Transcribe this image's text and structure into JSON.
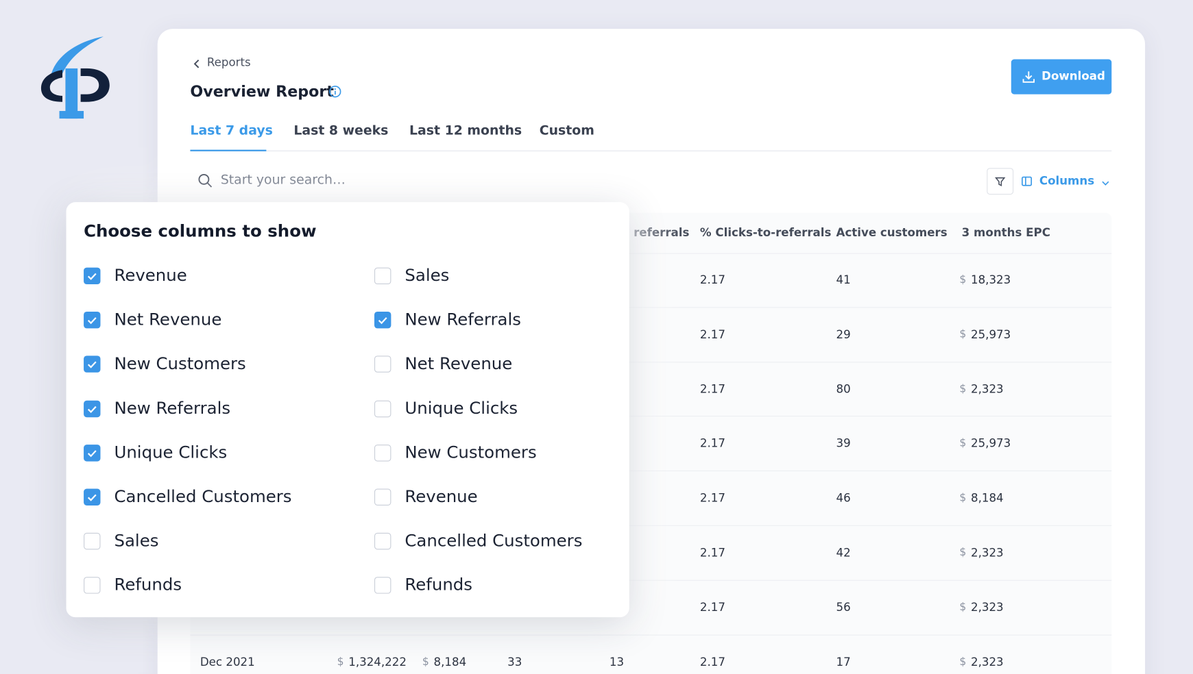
{
  "nav": {
    "back": "Reports"
  },
  "header": {
    "title": "Overview Report",
    "download": "Download"
  },
  "tabs": {
    "items": [
      "Last 7 days",
      "Last 8 weeks",
      "Last 12 months",
      "Custom"
    ],
    "active": 0
  },
  "search": {
    "placeholder": "Start your search…"
  },
  "toolbar": {
    "columns": "Columns"
  },
  "table": {
    "currency": "$",
    "headers": [
      "New referrals",
      "% Clicks-to-referrals",
      "Active customers",
      "3 months EPC"
    ],
    "rows": [
      {
        "clicks_to_referrals": "2.17",
        "active_customers": "41",
        "epc": "18,323"
      },
      {
        "clicks_to_referrals": "2.17",
        "active_customers": "29",
        "epc": "25,973"
      },
      {
        "clicks_to_referrals": "2.17",
        "active_customers": "80",
        "epc": "2,323"
      },
      {
        "clicks_to_referrals": "2.17",
        "active_customers": "39",
        "epc": "25,973"
      },
      {
        "clicks_to_referrals": "2.17",
        "active_customers": "46",
        "epc": "8,184"
      },
      {
        "clicks_to_referrals": "2.17",
        "active_customers": "42",
        "epc": "2,323"
      },
      {
        "clicks_to_referrals": "2.17",
        "active_customers": "56",
        "epc": "2,323"
      },
      {
        "month": "Dec 2021",
        "revenue": "1,324,222",
        "net_revenue": "8,184",
        "new_customers": "33",
        "new_referrals": "13",
        "clicks_to_referrals": "2.17",
        "active_customers": "17",
        "epc": "2,323"
      }
    ]
  },
  "column_picker": {
    "title": "Choose columns to show",
    "left": [
      {
        "label": "Revenue",
        "checked": true
      },
      {
        "label": "Net Revenue",
        "checked": true
      },
      {
        "label": "New Customers",
        "checked": true
      },
      {
        "label": "New Referrals",
        "checked": true
      },
      {
        "label": "Unique Clicks",
        "checked": true
      },
      {
        "label": "Cancelled Customers",
        "checked": true
      },
      {
        "label": "Sales",
        "checked": false
      },
      {
        "label": "Refunds",
        "checked": false
      }
    ],
    "right": [
      {
        "label": "Sales",
        "checked": false
      },
      {
        "label": "New Referrals",
        "checked": true
      },
      {
        "label": "Net Revenue",
        "checked": false
      },
      {
        "label": "Unique Clicks",
        "checked": false
      },
      {
        "label": "New Customers",
        "checked": false
      },
      {
        "label": "Revenue",
        "checked": false
      },
      {
        "label": "Cancelled Customers",
        "checked": false
      },
      {
        "label": "Refunds",
        "checked": false
      }
    ]
  }
}
